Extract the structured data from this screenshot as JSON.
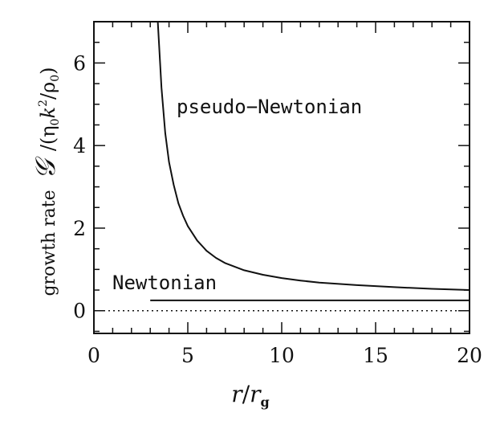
{
  "chart_data": {
    "type": "line",
    "xlim": [
      0,
      20
    ],
    "ylim": [
      -0.55,
      7
    ],
    "x_ticks_major": [
      0,
      5,
      10,
      15,
      20
    ],
    "x_tick_labels": [
      "0",
      "5",
      "10",
      "15",
      "20"
    ],
    "y_ticks_major": [
      0,
      2,
      4,
      6
    ],
    "y_tick_labels": [
      "0",
      "2",
      "4",
      "6"
    ],
    "x_minor_step": 1,
    "y_minor_step": 0.5,
    "grid": false,
    "xlabel": {
      "main": "r",
      "sep": "/",
      "sym": "r",
      "sub": "g"
    },
    "ylabel": {
      "words": "growth rate",
      "sym": "𝒢",
      "rest": "/(η",
      "sub0": "0",
      "k": "k",
      "sup": "2",
      "slash": "/ρ",
      "sub1": "0",
      "close": ")"
    },
    "annotations": {
      "pseudo": "pseudo−Newtonian",
      "newtonian": "Newtonian"
    },
    "series": [
      {
        "name": "pseudo−Newtonian",
        "style": "solid",
        "x": [
          3.4,
          3.6,
          3.8,
          4.0,
          4.25,
          4.5,
          4.75,
          5.0,
          5.5,
          6.0,
          6.5,
          7.0,
          8.0,
          9.0,
          10.0,
          11.0,
          12.0,
          14.0,
          16.0,
          18.0,
          20.0
        ],
        "y": [
          7.0,
          5.4,
          4.3,
          3.6,
          3.05,
          2.6,
          2.3,
          2.05,
          1.7,
          1.45,
          1.28,
          1.15,
          0.98,
          0.87,
          0.79,
          0.73,
          0.68,
          0.62,
          0.57,
          0.53,
          0.5
        ]
      },
      {
        "name": "Newtonian",
        "style": "solid",
        "x": [
          3.0,
          20.0
        ],
        "y": [
          0.25,
          0.25
        ]
      },
      {
        "name": "zero",
        "style": "dotted",
        "x": [
          0,
          20
        ],
        "y": [
          0,
          0
        ]
      }
    ]
  }
}
